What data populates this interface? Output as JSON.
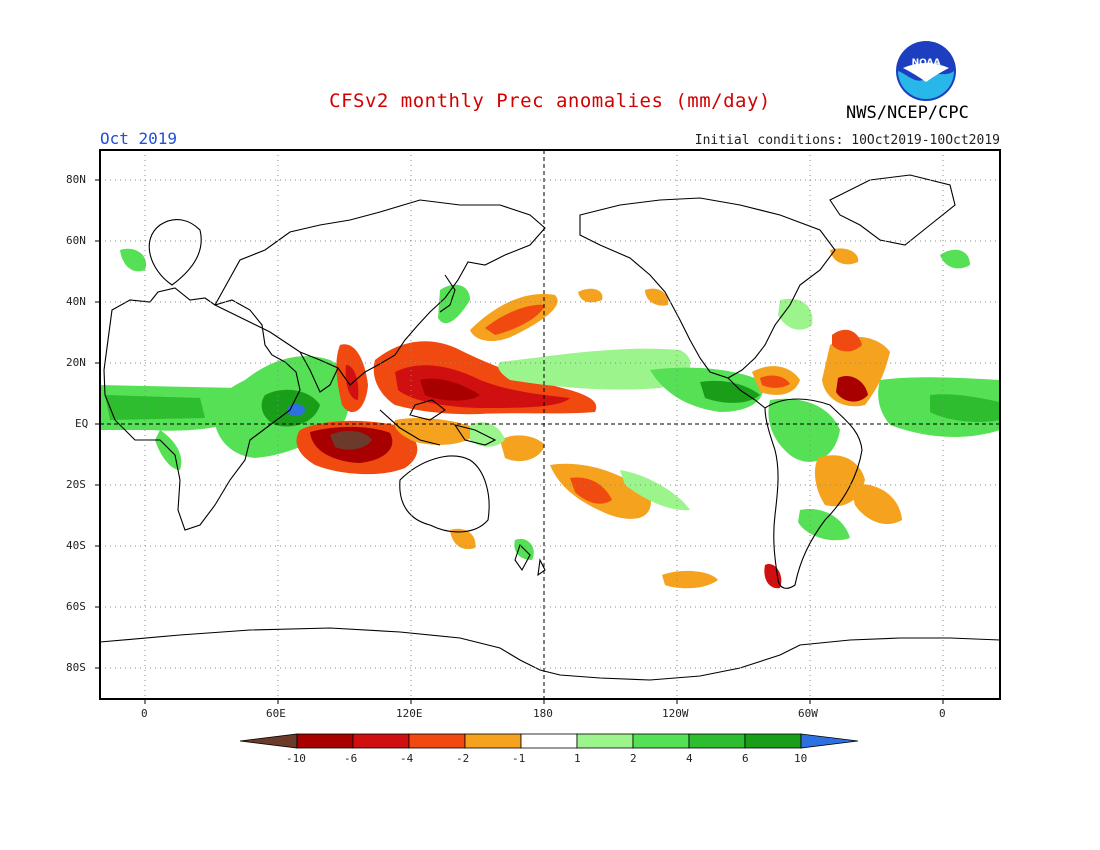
{
  "header": {
    "title": "CFSv2 monthly Prec anomalies (mm/day)",
    "month": "Oct 2019",
    "initial_conditions": "Initial conditions: 10Oct2019-10Oct2019",
    "agency": "NWS/NCEP/CPC",
    "logo_text": "NOAA"
  },
  "map": {
    "projection": "equirectangular",
    "lon_range": [
      -20,
      340
    ],
    "lat_range": [
      -90,
      90
    ],
    "lat_ticks": [
      "80N",
      "60N",
      "40N",
      "20N",
      "EQ",
      "20S",
      "40S",
      "60S",
      "80S"
    ],
    "lon_ticks": [
      "0",
      "60E",
      "120E",
      "180",
      "120W",
      "60W",
      "0"
    ],
    "reference_lines": [
      "EQ",
      "180"
    ],
    "grid": "dotted"
  },
  "colorbar": {
    "labels": [
      "-10",
      "-6",
      "-4",
      "-2",
      "-1",
      "1",
      "2",
      "4",
      "6",
      "10"
    ],
    "colors": [
      "#6b3a2a",
      "#a80000",
      "#d01010",
      "#f04a10",
      "#f5a21e",
      "#ffffff",
      "#9cf58c",
      "#55e055",
      "#2ebd2e",
      "#1a9e1a",
      "#2f70e0"
    ]
  },
  "colors": {
    "title": "#d40000",
    "month": "#1f4fd6"
  }
}
